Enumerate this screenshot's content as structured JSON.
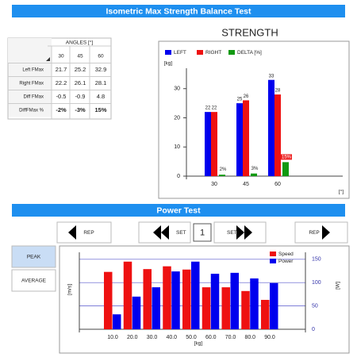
{
  "header": {
    "title": "Isometric Max Strength Balance Test"
  },
  "strength_table": {
    "header": "ANGLES [°]",
    "columns": [
      30,
      45,
      60
    ],
    "rows": [
      {
        "label": "Left FMax",
        "values": [
          21.7,
          25.2,
          32.9
        ]
      },
      {
        "label": "Right FMax",
        "values": [
          22.2,
          26.1,
          28.1
        ]
      },
      {
        "label": "Diff FMax",
        "values": [
          -0.5,
          -0.9,
          4.8
        ]
      },
      {
        "label": "DiffFMax %",
        "values": [
          "-2%",
          "-3%",
          "15%"
        ]
      }
    ]
  },
  "power_test": {
    "title": "Power Test",
    "buttons": {
      "rep_prev": "REP",
      "set_prev": "SET",
      "set_number": "1",
      "set_next": "SET",
      "rep_next": "REP"
    },
    "modes": [
      "PEAK",
      "AVERAGE"
    ]
  },
  "chart_data": [
    {
      "type": "bar",
      "title": "STRENGTH",
      "ylabel": "[kg]",
      "xlabel": "[°]",
      "categories": [
        30,
        45,
        60
      ],
      "series": [
        {
          "name": "LEFT",
          "color": "#0000ee",
          "values": [
            22,
            25,
            33
          ]
        },
        {
          "name": "RIGHT",
          "color": "#ee1111",
          "values": [
            22,
            26,
            28
          ]
        },
        {
          "name": "DELTA [%]",
          "color": "#119911",
          "values": [
            0.5,
            0.9,
            4.8
          ]
        }
      ],
      "annotations": [
        "2%",
        "3%",
        "15%"
      ],
      "ylim": [
        0,
        37
      ],
      "yticks": [
        0,
        10,
        20,
        30
      ],
      "legend": "top-left"
    },
    {
      "type": "bar",
      "xlabel": "[kg]",
      "ylabel": "[m/s]",
      "y2label": "[W]",
      "categories": [
        "10.0",
        "20.0",
        "30.0",
        "40.0",
        "50.0",
        "60.0",
        "70.0",
        "80.0",
        "90.0"
      ],
      "series": [
        {
          "name": "Speed",
          "color": "#ee1111",
          "values": [
            1.23,
            1.45,
            1.29,
            1.35,
            1.28,
            0.9,
            0.9,
            0.82,
            0.63
          ]
        },
        {
          "name": "Power",
          "color": "#0000ee",
          "axis": "y2",
          "values": [
            32,
            70,
            90,
            124,
            145,
            119,
            121,
            109,
            99
          ]
        }
      ],
      "ylim": [
        0,
        1.65
      ],
      "y2lim": [
        0,
        165
      ],
      "y2ticks": [
        0,
        50,
        100,
        150
      ],
      "legend": "top-right"
    }
  ]
}
